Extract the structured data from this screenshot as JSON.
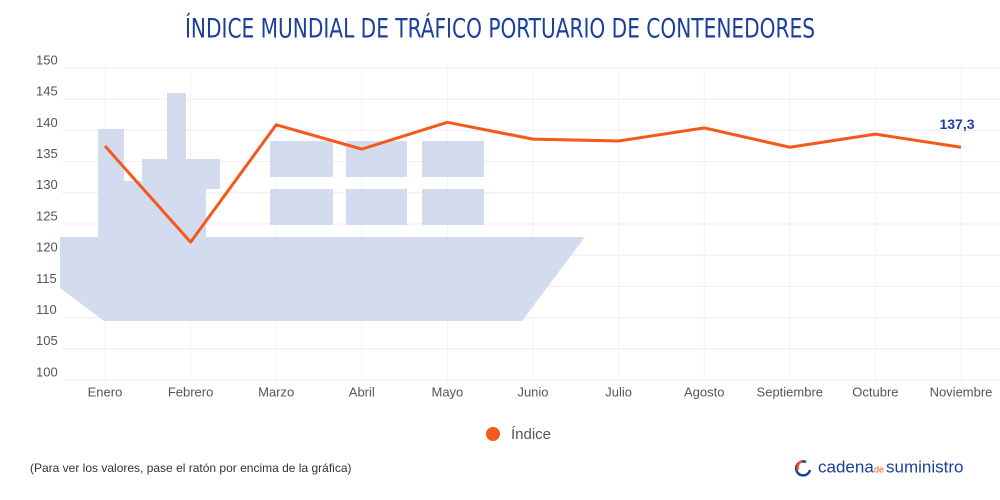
{
  "chart_data": {
    "type": "line",
    "title": "ÍNDICE MUNDIAL DE TRÁFICO PORTUARIO DE CONTENEDORES",
    "categories": [
      "Enero",
      "Febrero",
      "Marzo",
      "Abril",
      "Mayo",
      "Junio",
      "Julio",
      "Agosto",
      "Septiembre",
      "Octubre",
      "Noviembre"
    ],
    "series": [
      {
        "name": "Índice",
        "color": "#f4581a",
        "values": [
          137.5,
          122.1,
          140.9,
          137,
          141.3,
          138.6,
          138.3,
          140.4,
          137.3,
          139.4,
          137.3
        ],
        "value_labels": [
          null,
          null,
          null,
          null,
          null,
          null,
          null,
          null,
          null,
          null,
          "137,3"
        ]
      }
    ],
    "ylim": [
      100,
      150
    ],
    "yticks": [
      100,
      105,
      110,
      115,
      120,
      125,
      130,
      135,
      140,
      145,
      150
    ],
    "grid": true,
    "legend": "bottom"
  },
  "footer": {
    "note": "(Para ver los valores, pase el ratón por encima de la gráfica)",
    "logo": [
      "cadena",
      "de",
      "suministro"
    ]
  }
}
